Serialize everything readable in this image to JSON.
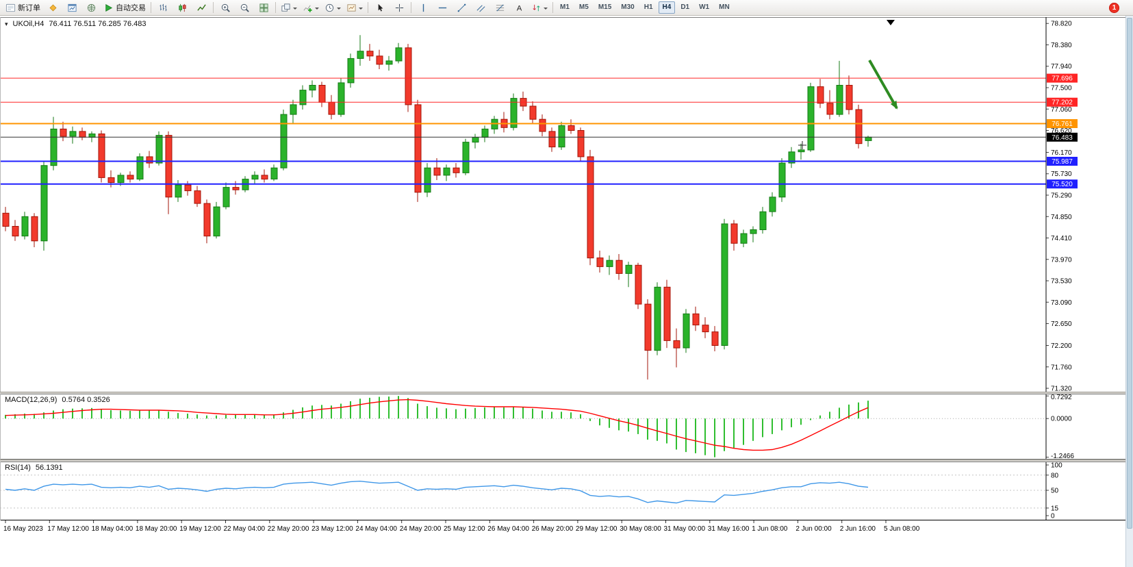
{
  "toolbar": {
    "notification_badge": "1",
    "items": [
      {
        "type": "button",
        "name": "new-order-button",
        "icon": "new-order-icon",
        "label": "新订单"
      },
      {
        "type": "icon",
        "name": "mql5-community-button",
        "icon": "diamond-icon"
      },
      {
        "type": "icon",
        "name": "charts-window-button",
        "icon": "chart-window-icon"
      },
      {
        "type": "icon",
        "name": "connection-button",
        "icon": "globe-icon"
      },
      {
        "type": "button",
        "name": "auto-trading-button",
        "icon": "play-icon",
        "label": "自动交易"
      },
      {
        "type": "sep"
      },
      {
        "type": "icon",
        "name": "bar-chart-mode-button",
        "icon": "ohlc-bars-icon"
      },
      {
        "type": "icon",
        "name": "candlestick-mode-button",
        "icon": "candles-icon"
      },
      {
        "type": "icon",
        "name": "line-chart-mode-button",
        "icon": "line-chart-icon"
      },
      {
        "type": "sep"
      },
      {
        "type": "icon",
        "name": "zoom-in-button",
        "icon": "zoom-in-icon"
      },
      {
        "type": "icon",
        "name": "zoom-out-button",
        "icon": "zoom-out-icon"
      },
      {
        "type": "icon",
        "name": "tile-windows-button",
        "icon": "tile-windows-icon"
      },
      {
        "type": "sep"
      },
      {
        "type": "icon",
        "name": "auto-arrange-button",
        "icon": "arrange-icon",
        "dropdown": true
      },
      {
        "type": "icon",
        "name": "indicators-button",
        "icon": "indicator-plus-icon",
        "dropdown": true
      },
      {
        "type": "icon",
        "name": "periods-button",
        "icon": "clock-icon",
        "dropdown": true
      },
      {
        "type": "icon",
        "name": "templates-button",
        "icon": "template-icon",
        "dropdown": true
      },
      {
        "type": "sep"
      },
      {
        "type": "icon",
        "name": "cursor-tool-button",
        "icon": "cursor-icon"
      },
      {
        "type": "icon",
        "name": "crosshair-tool-button",
        "icon": "crosshair-icon"
      },
      {
        "type": "sep"
      },
      {
        "type": "icon",
        "name": "vertical-line-tool",
        "icon": "vline-icon"
      },
      {
        "type": "icon",
        "name": "horizontal-line-tool",
        "icon": "hline-icon"
      },
      {
        "type": "icon",
        "name": "trendline-tool",
        "icon": "trendline-icon"
      },
      {
        "type": "icon",
        "name": "channel-tool",
        "icon": "channel-icon"
      },
      {
        "type": "icon",
        "name": "fibonacci-tool",
        "icon": "fibonacci-icon"
      },
      {
        "type": "icon",
        "name": "text-tool",
        "icon": "text-icon"
      },
      {
        "type": "icon",
        "name": "arrows-tool",
        "icon": "arrows-icon",
        "dropdown": true
      },
      {
        "type": "sep"
      }
    ],
    "timeframes": {
      "options": [
        "M1",
        "M5",
        "M15",
        "M30",
        "H1",
        "H4",
        "D1",
        "W1",
        "MN"
      ],
      "active": "H4"
    }
  },
  "chart": {
    "collapse_arrow": "▾",
    "symbol_title": "UKOil,H4",
    "ohlc_text": "76.411 76.511 76.285 76.483",
    "macd_label": "MACD(12,26,9)",
    "macd_values": "0.5764 0.3526",
    "rsi_label": "RSI(14)",
    "rsi_value": "56.1391"
  },
  "chart_data": {
    "type": "candlestick",
    "symbol": "UKOil",
    "timeframe": "H4",
    "last_ohlc": {
      "open": 76.411,
      "high": 76.511,
      "low": 76.285,
      "close": 76.483
    },
    "price_scale": {
      "max": 78.95,
      "min": 71.25
    },
    "price_axis_labels": [
      "78.820",
      "78.380",
      "77.940",
      "77.500",
      "77.060",
      "76.620",
      "76.170",
      "75.730",
      "75.290",
      "74.850",
      "74.410",
      "73.970",
      "73.530",
      "73.090",
      "72.650",
      "72.200",
      "71.760",
      "71.320"
    ],
    "time_axis_labels": [
      "16 May 2023",
      "17 May 12:00",
      "18 May 04:00",
      "18 May 20:00",
      "19 May 12:00",
      "22 May 04:00",
      "22 May 20:00",
      "23 May 12:00",
      "24 May 04:00",
      "24 May 20:00",
      "25 May 12:00",
      "26 May 04:00",
      "26 May 20:00",
      "29 May 12:00",
      "30 May 08:00",
      "31 May 00:00",
      "31 May 16:00",
      "1 Jun 08:00",
      "2 Jun 00:00",
      "2 Jun 16:00",
      "5 Jun 08:00"
    ],
    "levels": [
      {
        "price": 77.696,
        "label": "77.696",
        "color": "#ff2525",
        "width": 1
      },
      {
        "price": 77.202,
        "label": "77.202",
        "color": "#ff2525",
        "width": 1
      },
      {
        "price": 76.761,
        "label": "76.761",
        "color": "#ff9400",
        "width": 2
      },
      {
        "price": 75.987,
        "label": "75.987",
        "color": "#2020ff",
        "width": 2
      },
      {
        "price": 75.52,
        "label": "75.520",
        "color": "#2020ff",
        "width": 2
      }
    ],
    "current_price": {
      "value": 76.483,
      "label": "76.483"
    },
    "annotation_arrow": {
      "from": [
        1270,
        63
      ],
      "to": [
        1310,
        133
      ],
      "color": "#2e8b22"
    },
    "cross_marker": [
      1172,
      187
    ],
    "colors": {
      "up": "#2bb32b",
      "up_border": "#147a14",
      "down": "#f23a2c",
      "down_border": "#a31408",
      "macd_hist": "#2fbe2f",
      "macd_signal": "#ff0000",
      "rsi": "#3f97e8"
    },
    "candles": [
      [
        74.92,
        75.05,
        74.55,
        74.65
      ],
      [
        74.65,
        74.78,
        74.35,
        74.45
      ],
      [
        74.45,
        74.95,
        74.38,
        74.85
      ],
      [
        74.85,
        74.92,
        74.22,
        74.35
      ],
      [
        74.35,
        76.0,
        74.15,
        75.9
      ],
      [
        75.9,
        76.9,
        75.8,
        76.65
      ],
      [
        76.65,
        76.8,
        76.4,
        76.5
      ],
      [
        76.5,
        76.7,
        76.35,
        76.6
      ],
      [
        76.6,
        76.68,
        76.42,
        76.48
      ],
      [
        76.48,
        76.6,
        76.38,
        76.55
      ],
      [
        76.55,
        76.62,
        75.55,
        75.65
      ],
      [
        75.65,
        75.8,
        75.45,
        75.55
      ],
      [
        75.55,
        75.75,
        75.48,
        75.7
      ],
      [
        75.7,
        75.78,
        75.55,
        75.62
      ],
      [
        75.62,
        76.15,
        75.58,
        76.08
      ],
      [
        76.08,
        76.2,
        75.85,
        75.95
      ],
      [
        75.95,
        76.6,
        75.9,
        76.52
      ],
      [
        76.52,
        76.6,
        74.9,
        75.25
      ],
      [
        75.25,
        75.6,
        75.15,
        75.5
      ],
      [
        75.5,
        75.58,
        75.28,
        75.38
      ],
      [
        75.38,
        75.48,
        75.05,
        75.12
      ],
      [
        75.12,
        75.2,
        74.3,
        74.45
      ],
      [
        74.45,
        75.15,
        74.4,
        75.05
      ],
      [
        75.05,
        75.55,
        75.0,
        75.45
      ],
      [
        75.45,
        75.58,
        75.3,
        75.4
      ],
      [
        75.4,
        75.68,
        75.35,
        75.62
      ],
      [
        75.62,
        75.78,
        75.52,
        75.7
      ],
      [
        75.7,
        75.82,
        75.55,
        75.62
      ],
      [
        75.62,
        75.92,
        75.58,
        75.85
      ],
      [
        75.85,
        77.05,
        75.8,
        76.95
      ],
      [
        76.95,
        77.25,
        76.75,
        77.15
      ],
      [
        77.15,
        77.55,
        77.05,
        77.45
      ],
      [
        77.45,
        77.65,
        77.3,
        77.55
      ],
      [
        77.55,
        77.62,
        77.1,
        77.2
      ],
      [
        77.2,
        77.35,
        76.85,
        76.95
      ],
      [
        76.95,
        77.7,
        76.9,
        77.6
      ],
      [
        77.6,
        78.2,
        77.5,
        78.1
      ],
      [
        78.1,
        78.58,
        77.95,
        78.25
      ],
      [
        78.25,
        78.4,
        78.05,
        78.15
      ],
      [
        78.15,
        78.28,
        77.88,
        77.98
      ],
      [
        77.98,
        78.15,
        77.85,
        78.05
      ],
      [
        78.05,
        78.42,
        78.0,
        78.32
      ],
      [
        78.32,
        78.4,
        77.0,
        77.15
      ],
      [
        77.15,
        77.25,
        75.15,
        75.35
      ],
      [
        75.35,
        75.95,
        75.25,
        75.85
      ],
      [
        75.85,
        76.05,
        75.6,
        75.7
      ],
      [
        75.7,
        75.92,
        75.58,
        75.85
      ],
      [
        75.85,
        75.95,
        75.65,
        75.75
      ],
      [
        75.75,
        76.45,
        75.7,
        76.38
      ],
      [
        76.38,
        76.55,
        76.25,
        76.48
      ],
      [
        76.48,
        76.72,
        76.38,
        76.65
      ],
      [
        76.65,
        76.92,
        76.55,
        76.85
      ],
      [
        76.85,
        77.0,
        76.58,
        76.68
      ],
      [
        76.68,
        77.38,
        76.62,
        77.28
      ],
      [
        77.28,
        77.42,
        77.02,
        77.12
      ],
      [
        77.12,
        77.22,
        76.75,
        76.85
      ],
      [
        76.85,
        76.95,
        76.5,
        76.6
      ],
      [
        76.6,
        76.68,
        76.18,
        76.28
      ],
      [
        76.28,
        76.8,
        76.22,
        76.72
      ],
      [
        76.72,
        76.85,
        76.55,
        76.62
      ],
      [
        76.62,
        76.68,
        75.98,
        76.08
      ],
      [
        76.08,
        76.22,
        73.85,
        74.0
      ],
      [
        74.0,
        74.15,
        73.7,
        73.82
      ],
      [
        73.82,
        74.05,
        73.65,
        73.95
      ],
      [
        73.95,
        74.08,
        73.55,
        73.68
      ],
      [
        73.68,
        73.92,
        73.4,
        73.85
      ],
      [
        73.85,
        73.9,
        72.95,
        73.05
      ],
      [
        73.05,
        73.15,
        71.5,
        72.1
      ],
      [
        72.1,
        73.5,
        72.0,
        73.4
      ],
      [
        73.4,
        73.55,
        72.15,
        72.3
      ],
      [
        72.3,
        72.55,
        71.75,
        72.15
      ],
      [
        72.15,
        72.95,
        72.05,
        72.85
      ],
      [
        72.85,
        73.0,
        72.5,
        72.62
      ],
      [
        72.62,
        72.78,
        72.35,
        72.48
      ],
      [
        72.48,
        72.6,
        72.08,
        72.2
      ],
      [
        72.2,
        74.8,
        72.12,
        74.7
      ],
      [
        74.7,
        74.78,
        74.15,
        74.3
      ],
      [
        74.3,
        74.58,
        74.22,
        74.5
      ],
      [
        74.5,
        74.65,
        74.32,
        74.58
      ],
      [
        74.58,
        75.05,
        74.5,
        74.95
      ],
      [
        74.95,
        75.35,
        74.85,
        75.25
      ],
      [
        75.25,
        76.05,
        75.15,
        75.95
      ],
      [
        75.95,
        76.28,
        75.85,
        76.18
      ],
      [
        76.18,
        76.35,
        76.02,
        76.22
      ],
      [
        76.22,
        77.6,
        76.18,
        77.52
      ],
      [
        77.52,
        77.68,
        77.08,
        77.18
      ],
      [
        77.18,
        77.45,
        76.85,
        76.95
      ],
      [
        76.95,
        78.05,
        76.9,
        77.55
      ],
      [
        77.55,
        77.75,
        76.95,
        77.05
      ],
      [
        77.05,
        77.15,
        76.25,
        76.35
      ],
      [
        76.411,
        76.511,
        76.285,
        76.483
      ]
    ],
    "macd": {
      "scale": {
        "max": 0.8,
        "min": -1.32
      },
      "axis": [
        {
          "value": 0.7292,
          "label": "0.7292"
        },
        {
          "value": 0,
          "label": "0.0000"
        },
        {
          "value": -1.2466,
          "label": "-1.2466"
        }
      ],
      "hist": [
        0.12,
        0.14,
        0.16,
        0.15,
        0.2,
        0.26,
        0.3,
        0.32,
        0.33,
        0.34,
        0.3,
        0.27,
        0.26,
        0.25,
        0.27,
        0.26,
        0.28,
        0.22,
        0.18,
        0.16,
        0.13,
        0.1,
        0.1,
        0.12,
        0.12,
        0.13,
        0.13,
        0.12,
        0.13,
        0.2,
        0.28,
        0.36,
        0.42,
        0.44,
        0.42,
        0.48,
        0.56,
        0.64,
        0.67,
        0.7,
        0.71,
        0.7292,
        0.66,
        0.48,
        0.4,
        0.35,
        0.33,
        0.3,
        0.32,
        0.34,
        0.36,
        0.38,
        0.36,
        0.38,
        0.36,
        0.32,
        0.26,
        0.22,
        0.22,
        0.2,
        0.14,
        -0.08,
        -0.22,
        -0.3,
        -0.38,
        -0.42,
        -0.5,
        -0.68,
        -0.72,
        -0.8,
        -1.0,
        -1.08,
        -1.12,
        -1.18,
        -1.2466,
        -1.05,
        -0.95,
        -0.85,
        -0.72,
        -0.6,
        -0.5,
        -0.38,
        -0.28,
        -0.2,
        -0.05,
        0.1,
        0.22,
        0.35,
        0.45,
        0.52,
        0.5764
      ],
      "signal": [
        0.1,
        0.11,
        0.12,
        0.13,
        0.15,
        0.17,
        0.2,
        0.23,
        0.26,
        0.28,
        0.3,
        0.3,
        0.29,
        0.28,
        0.27,
        0.27,
        0.27,
        0.26,
        0.25,
        0.23,
        0.2,
        0.18,
        0.16,
        0.14,
        0.13,
        0.13,
        0.13,
        0.12,
        0.12,
        0.14,
        0.17,
        0.21,
        0.26,
        0.3,
        0.33,
        0.36,
        0.4,
        0.45,
        0.5,
        0.54,
        0.57,
        0.6,
        0.61,
        0.59,
        0.56,
        0.52,
        0.48,
        0.45,
        0.42,
        0.4,
        0.39,
        0.38,
        0.38,
        0.38,
        0.37,
        0.36,
        0.34,
        0.32,
        0.3,
        0.27,
        0.24,
        0.17,
        0.09,
        0.01,
        -0.07,
        -0.14,
        -0.22,
        -0.31,
        -0.4,
        -0.48,
        -0.57,
        -0.65,
        -0.72,
        -0.79,
        -0.86,
        -0.9,
        -0.96,
        -1.0,
        -1.02,
        -1.02,
        -1.0,
        -0.93,
        -0.83,
        -0.7,
        -0.55,
        -0.4,
        -0.24,
        -0.09,
        0.07,
        0.22,
        0.3526
      ]
    },
    "rsi": {
      "axis": [
        {
          "value": 100,
          "label": "100"
        },
        {
          "value": 80,
          "label": "80"
        },
        {
          "value": 50,
          "label": "50"
        },
        {
          "value": 15,
          "label": "15"
        },
        {
          "value": 0,
          "label": "0"
        }
      ],
      "dotted_levels": [
        80,
        50,
        15
      ],
      "values": [
        52,
        50,
        53,
        50,
        58,
        62,
        61,
        62,
        61,
        62,
        56,
        55,
        56,
        55,
        58,
        56,
        59,
        52,
        54,
        53,
        51,
        48,
        52,
        54,
        53,
        55,
        56,
        55,
        56,
        62,
        64,
        65,
        66,
        63,
        60,
        64,
        67,
        68,
        66,
        64,
        65,
        66,
        58,
        50,
        53,
        52,
        53,
        52,
        56,
        57,
        58,
        59,
        57,
        60,
        58,
        55,
        53,
        51,
        54,
        53,
        49,
        40,
        38,
        39,
        37,
        38,
        33,
        26,
        29,
        27,
        25,
        30,
        29,
        28,
        27,
        41,
        40,
        42,
        44,
        48,
        51,
        55,
        57,
        57,
        63,
        65,
        64,
        66,
        63,
        58,
        56.1391
      ]
    }
  }
}
